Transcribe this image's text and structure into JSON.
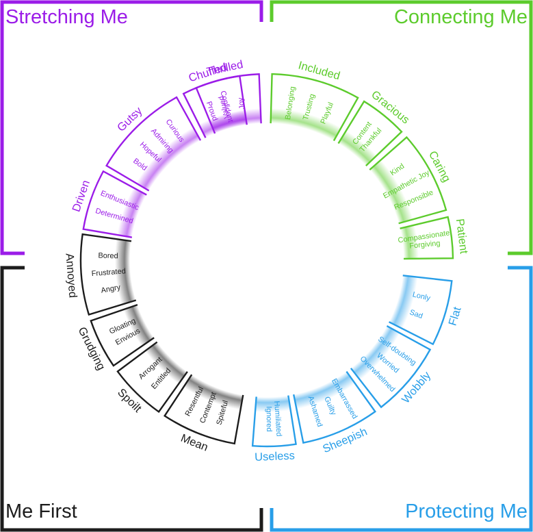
{
  "quadrants": [
    {
      "key": "stretching",
      "title": "Stretching Me",
      "color": "#9b1ce8"
    },
    {
      "key": "connecting",
      "title": "Connecting Me",
      "color": "#5ccb2c"
    },
    {
      "key": "protecting",
      "title": "Protecting Me",
      "color": "#289ee8"
    },
    {
      "key": "mefirst",
      "title": "Me First",
      "color": "#1c1c1c"
    }
  ],
  "groups": [
    {
      "name": "Thrilled",
      "quadrant": "stretching",
      "emotions": [
        "Valued",
        "Joy"
      ]
    },
    {
      "name": "Included",
      "quadrant": "connecting",
      "emotions": [
        "Belonging",
        "Trusting",
        "Playful"
      ]
    },
    {
      "name": "Gracious",
      "quadrant": "connecting",
      "emotions": [
        "Content",
        "Thankful"
      ]
    },
    {
      "name": "Caring",
      "quadrant": "connecting",
      "emotions": [
        "Kind",
        "Empathetic Joy",
        "Responsible"
      ]
    },
    {
      "name": "Patient",
      "quadrant": "connecting",
      "emotions": [
        "Compassionate",
        "Forgiving"
      ]
    },
    {
      "name": "Flat",
      "quadrant": "protecting",
      "emotions": [
        "Lonly",
        "Sad"
      ]
    },
    {
      "name": "Wobbly",
      "quadrant": "protecting",
      "emotions": [
        "Self-doubting",
        "Worried",
        "Overwhelmed"
      ]
    },
    {
      "name": "Sheepish",
      "quadrant": "protecting",
      "emotions": [
        "Embarrassed",
        "Guilty",
        "Ashamed"
      ]
    },
    {
      "name": "Useless",
      "quadrant": "protecting",
      "emotions": [
        "Humiliated",
        "Ignored"
      ]
    },
    {
      "name": "Mean",
      "quadrant": "mefirst",
      "emotions": [
        "Spiteful",
        "Contempt",
        "Resentful"
      ]
    },
    {
      "name": "Spoilt",
      "quadrant": "mefirst",
      "emotions": [
        "Entitled",
        "Arrogant"
      ]
    },
    {
      "name": "Grudging",
      "quadrant": "mefirst",
      "emotions": [
        "Envious",
        "Gloating"
      ]
    },
    {
      "name": "Annoyed",
      "quadrant": "mefirst",
      "emotions": [
        "Angry",
        "Frustrated",
        "Bored"
      ]
    },
    {
      "name": "Driven",
      "quadrant": "stretching",
      "emotions": [
        "Determined",
        "Enthusiastic"
      ]
    },
    {
      "name": "Gutsy",
      "quadrant": "stretching",
      "emotions": [
        "Bold",
        "Hopeful",
        "Admiring",
        "Curious"
      ]
    },
    {
      "name": "Chuffed",
      "quadrant": "stretching",
      "emotions": [
        "Proud",
        "Confident"
      ]
    }
  ]
}
